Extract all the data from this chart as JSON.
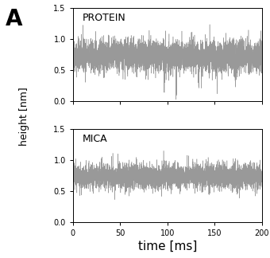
{
  "title_label": "A",
  "xlabel": "time [ms]",
  "ylabel": "height [nm]",
  "xlim": [
    0,
    200
  ],
  "ylim": [
    0,
    1.5
  ],
  "yticks": [
    0,
    0.5,
    1.0,
    1.5
  ],
  "xticks": [
    0,
    50,
    100,
    150,
    200
  ],
  "subplot_labels": [
    "PROTEIN",
    "MICA"
  ],
  "protein_mean": 0.72,
  "protein_rms": 0.13,
  "mica_mean": 0.73,
  "mica_rms": 0.1,
  "n_points": 4000,
  "trace_color": "#999999",
  "trace_color2": "#555555",
  "trace_linewidth": 0.35,
  "background_color": "#ffffff",
  "protein_seed": 42,
  "mica_seed": 99,
  "label_fontsize": 20,
  "tick_fontsize": 7,
  "axis_label_fontsize": 9,
  "subplot_label_fontsize": 9,
  "xlabel_fontsize": 11
}
